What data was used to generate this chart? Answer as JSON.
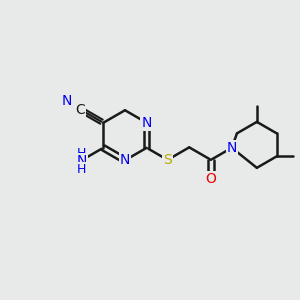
{
  "background_color": "#e8eaea",
  "bond_color": "#1a1a1a",
  "bond_width": 1.8,
  "atom_colors": {
    "C": "#1a1a1a",
    "N": "#0000ee",
    "O": "#ee0000",
    "S": "#bbaa00",
    "H": "#1a1a1a"
  },
  "font_size_atoms": 10,
  "font_size_label": 9,
  "figsize": [
    3.0,
    3.0
  ],
  "dpi": 100,
  "xlim": [
    0,
    10
  ],
  "ylim": [
    0,
    10
  ]
}
